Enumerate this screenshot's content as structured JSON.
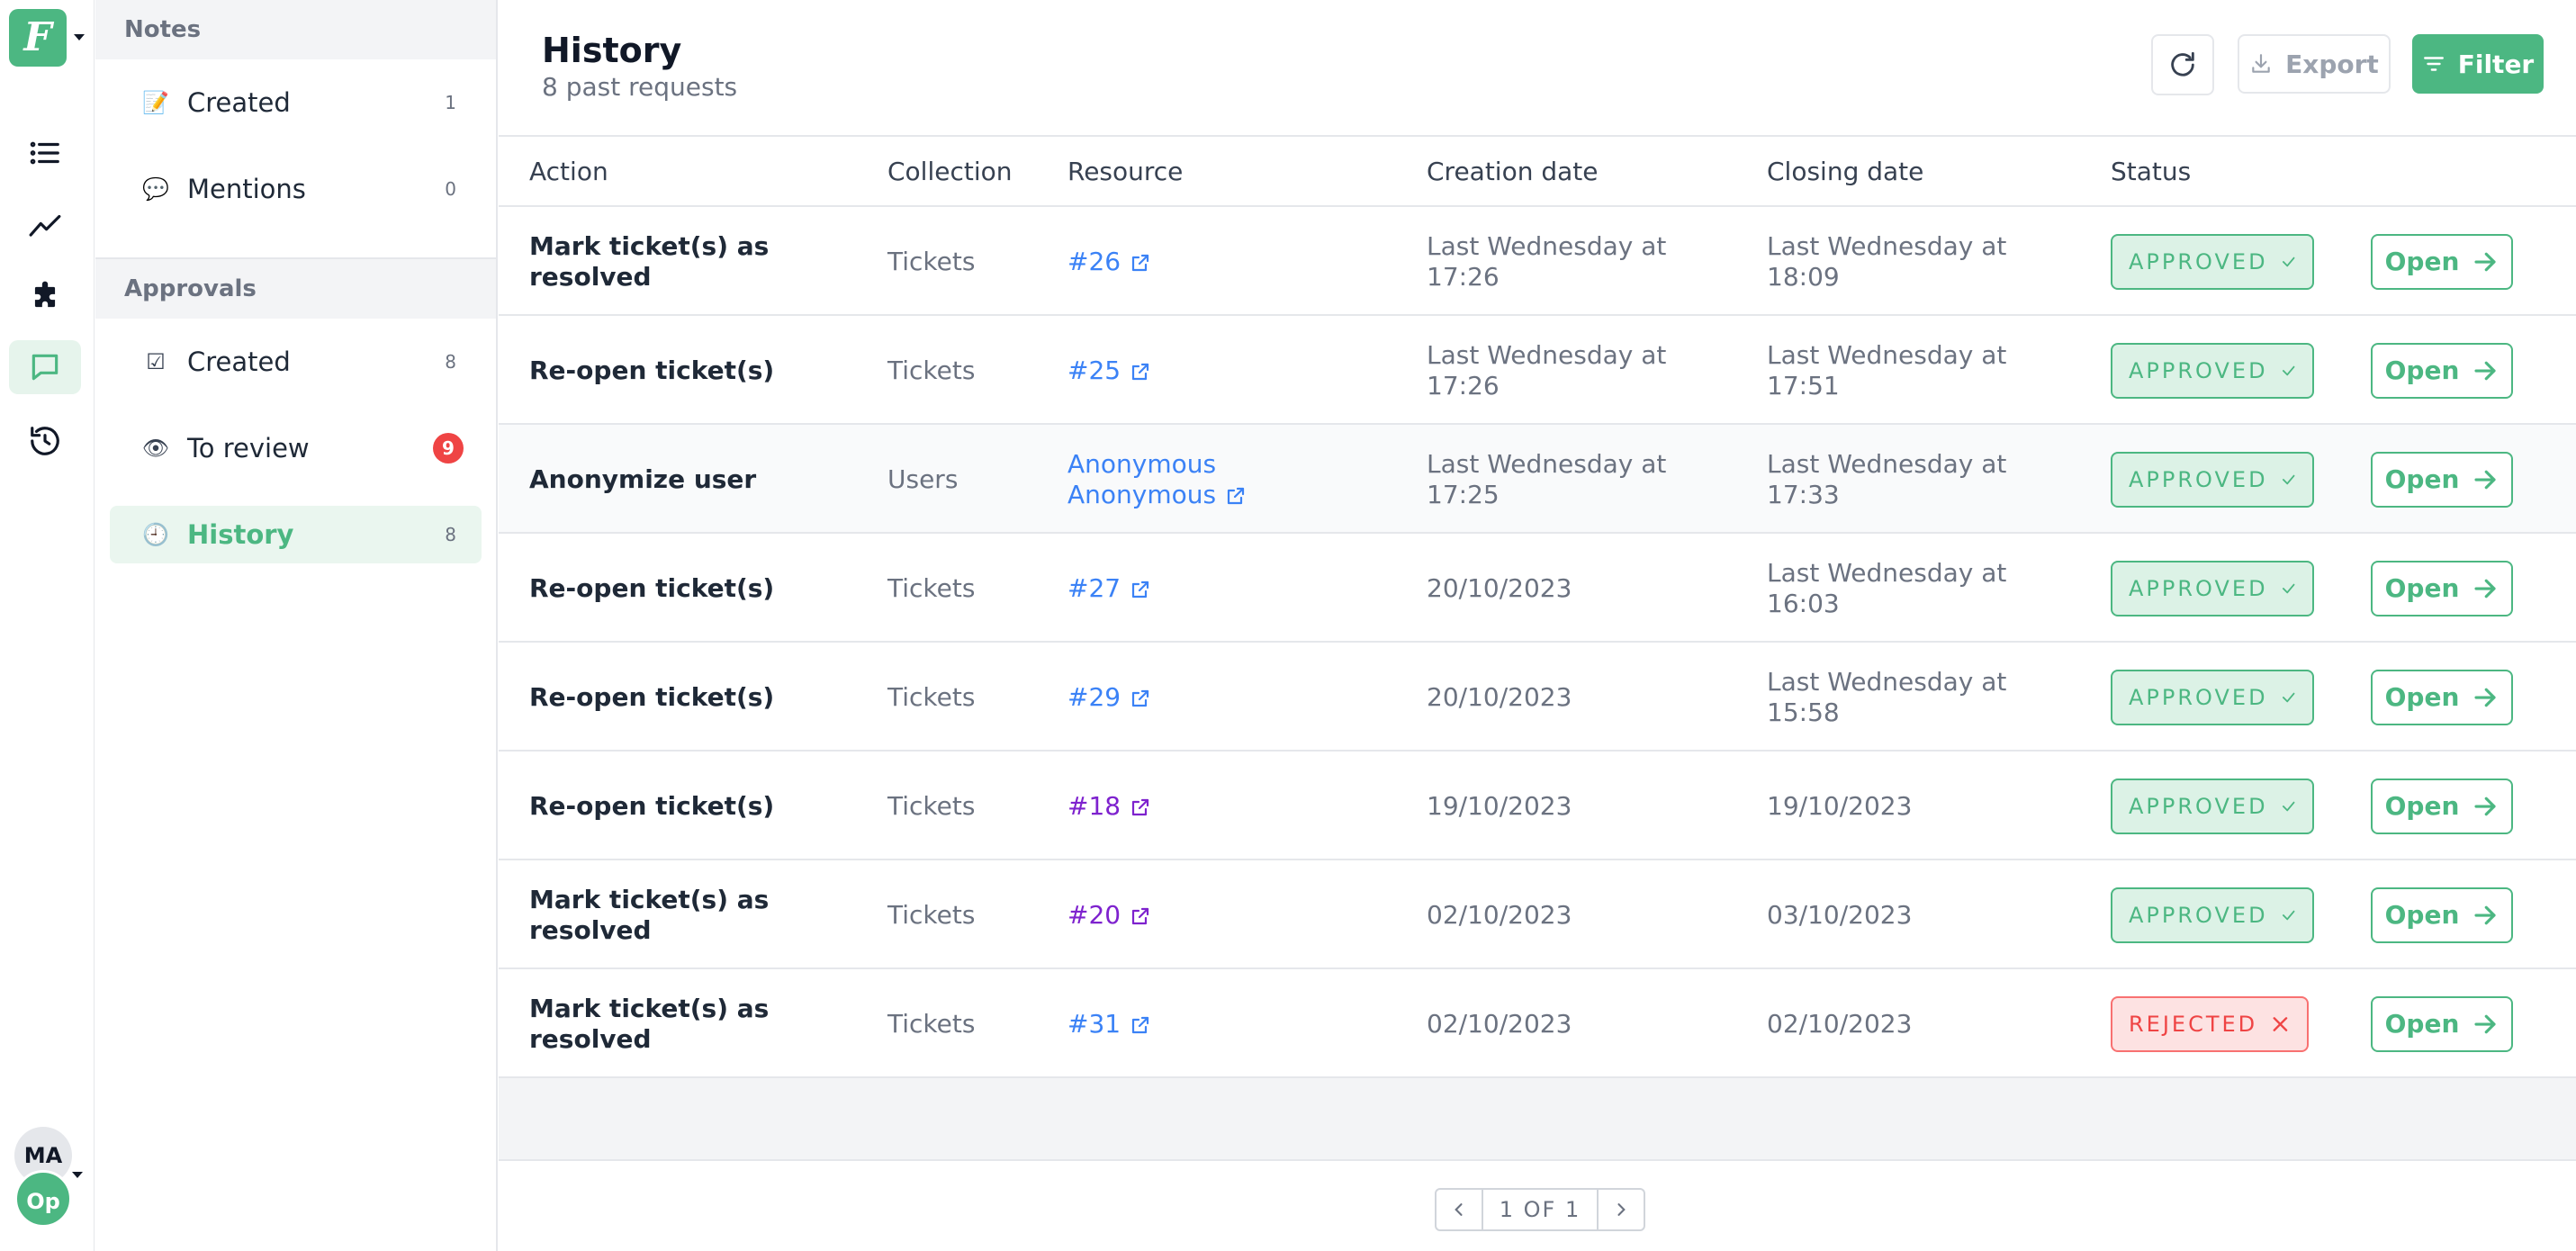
{
  "rail": {
    "logo_letter": "F",
    "items": [
      {
        "icon": "list-icon",
        "active": false
      },
      {
        "icon": "trend-chart-icon",
        "active": false
      },
      {
        "icon": "puzzle-icon",
        "active": false
      },
      {
        "icon": "chat-bubble-icon",
        "active": true
      },
      {
        "icon": "history-icon",
        "active": false
      }
    ],
    "user_initials": "MA",
    "project_initials": "Op"
  },
  "sidebar": {
    "notes_title": "Notes",
    "notes": [
      {
        "label": "Created",
        "count": "1",
        "icon": "memo-icon"
      },
      {
        "label": "Mentions",
        "count": "0",
        "icon": "speech-bubble-icon"
      }
    ],
    "approvals_title": "Approvals",
    "approvals": [
      {
        "label": "Created",
        "count": "8",
        "icon": "checkbox-icon"
      },
      {
        "label": "To review",
        "count": "9",
        "icon": "eye-icon"
      },
      {
        "label": "History",
        "count": "8",
        "icon": "clock-icon"
      }
    ]
  },
  "header": {
    "title": "History",
    "subtitle": "8 past requests",
    "export_label": "Export",
    "filter_label": "Filter"
  },
  "table": {
    "columns": [
      "Action",
      "Collection",
      "Resource",
      "Creation date",
      "Closing date",
      "Status"
    ],
    "rows": [
      {
        "action": "Mark ticket(s) as resolved",
        "collection": "Tickets",
        "resource": "#26",
        "created": "Last Wednesday at 17:26",
        "closed": "Last Wednesday at 18:09",
        "status": "APPROVED",
        "open": "Open"
      },
      {
        "action": "Re-open ticket(s)",
        "collection": "Tickets",
        "resource": "#25",
        "created": "Last Wednesday at 17:26",
        "closed": "Last Wednesday at 17:51",
        "status": "APPROVED",
        "open": "Open"
      },
      {
        "action": "Anonymize user",
        "collection": "Users",
        "resource": "Anonymous Anonymous",
        "created": "Last Wednesday at 17:25",
        "closed": "Last Wednesday at 17:33",
        "status": "APPROVED",
        "open": "Open"
      },
      {
        "action": "Re-open ticket(s)",
        "collection": "Tickets",
        "resource": "#27",
        "created": "20/10/2023",
        "closed": "Last Wednesday at 16:03",
        "status": "APPROVED",
        "open": "Open"
      },
      {
        "action": "Re-open ticket(s)",
        "collection": "Tickets",
        "resource": "#29",
        "created": "20/10/2023",
        "closed": "Last Wednesday at 15:58",
        "status": "APPROVED",
        "open": "Open"
      },
      {
        "action": "Re-open ticket(s)",
        "collection": "Tickets",
        "resource": "#18",
        "created": "19/10/2023",
        "closed": "19/10/2023",
        "status": "APPROVED",
        "open": "Open"
      },
      {
        "action": "Mark ticket(s) as resolved",
        "collection": "Tickets",
        "resource": "#20",
        "created": "02/10/2023",
        "closed": "03/10/2023",
        "status": "APPROVED",
        "open": "Open"
      },
      {
        "action": "Mark ticket(s) as resolved",
        "collection": "Tickets",
        "resource": "#31",
        "created": "02/10/2023",
        "closed": "02/10/2023",
        "status": "REJECTED",
        "open": "Open"
      }
    ]
  },
  "pagination": {
    "label": "1 OF 1"
  },
  "colors": {
    "accent": "#4cb782",
    "link": "#3b82f6",
    "visited_link": "#7e22ce",
    "danger": "#ef4444"
  }
}
